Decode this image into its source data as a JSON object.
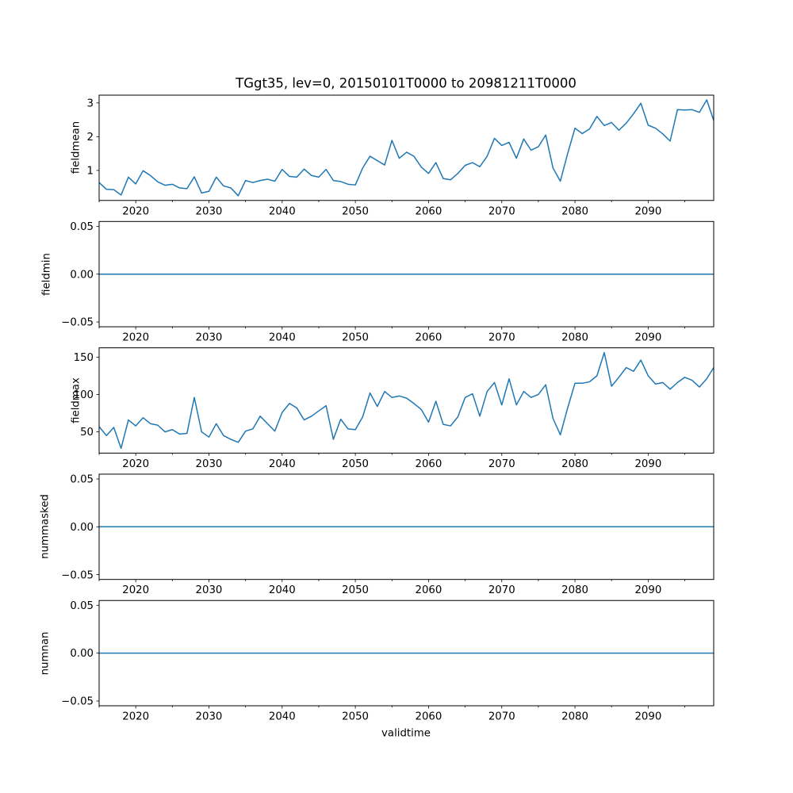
{
  "figure": {
    "title": "TGgt35, lev=0, 20150101T0000 to 20981211T0000",
    "xlabel": "validtime",
    "background": "#ffffff",
    "line_color": "#1f77b4",
    "axis_color": "#000000",
    "xlim": [
      2015.0,
      2098.95
    ],
    "x_major_ticks": [
      2020,
      2030,
      2040,
      2050,
      2060,
      2070,
      2080,
      2090
    ],
    "x_tick_labels": [
      "2020",
      "2030",
      "2040",
      "2050",
      "2060",
      "2070",
      "2080",
      "2090"
    ],
    "x_minor_ticks": [
      2015,
      2025,
      2035,
      2045,
      2055,
      2065,
      2075,
      2085,
      2095
    ]
  },
  "chart_data": [
    {
      "type": "line",
      "ylabel": "fieldmean",
      "ylim": [
        0.11,
        3.23
      ],
      "yticks": [
        1,
        2,
        3
      ],
      "ytick_labels": [
        "1",
        "2",
        "3"
      ],
      "x": [
        2015,
        2016,
        2017,
        2018,
        2019,
        2020,
        2021,
        2022,
        2023,
        2024,
        2025,
        2026,
        2027,
        2028,
        2029,
        2030,
        2031,
        2032,
        2033,
        2034,
        2035,
        2036,
        2037,
        2038,
        2039,
        2040,
        2041,
        2042,
        2043,
        2044,
        2045,
        2046,
        2047,
        2048,
        2049,
        2050,
        2051,
        2052,
        2053,
        2054,
        2055,
        2056,
        2057,
        2058,
        2059,
        2060,
        2061,
        2062,
        2063,
        2064,
        2065,
        2066,
        2067,
        2068,
        2069,
        2070,
        2071,
        2072,
        2073,
        2074,
        2075,
        2076,
        2077,
        2078,
        2079,
        2080,
        2081,
        2082,
        2083,
        2084,
        2085,
        2086,
        2087,
        2088,
        2089,
        2090,
        2091,
        2092,
        2093,
        2094,
        2095,
        2096,
        2097,
        2098,
        2098.95
      ],
      "values": [
        0.64,
        0.44,
        0.43,
        0.27,
        0.8,
        0.6,
        0.99,
        0.85,
        0.66,
        0.56,
        0.59,
        0.48,
        0.46,
        0.81,
        0.33,
        0.38,
        0.8,
        0.54,
        0.48,
        0.25,
        0.7,
        0.64,
        0.7,
        0.74,
        0.68,
        1.03,
        0.82,
        0.8,
        1.04,
        0.85,
        0.8,
        1.03,
        0.7,
        0.67,
        0.59,
        0.57,
        1.07,
        1.42,
        1.29,
        1.16,
        1.89,
        1.36,
        1.54,
        1.42,
        1.1,
        0.91,
        1.23,
        0.76,
        0.72,
        0.91,
        1.15,
        1.23,
        1.11,
        1.42,
        1.95,
        1.74,
        1.83,
        1.36,
        1.93,
        1.6,
        1.7,
        2.05,
        1.07,
        0.68,
        1.5,
        2.25,
        2.09,
        2.23,
        2.6,
        2.33,
        2.42,
        2.19,
        2.4,
        2.68,
        2.99,
        2.34,
        2.25,
        2.08,
        1.87,
        2.8,
        2.79,
        2.8,
        2.72,
        3.09,
        2.48
      ]
    },
    {
      "type": "line",
      "ylabel": "fieldmin",
      "ylim": [
        -0.055,
        0.055
      ],
      "yticks": [
        0.05,
        0.0,
        -0.05
      ],
      "ytick_labels": [
        "0.05",
        "0.00",
        "−0.05"
      ],
      "x": [
        2015.0,
        2098.95
      ],
      "values": [
        0,
        0
      ]
    },
    {
      "type": "line",
      "ylabel": "fieldmax",
      "ylim": [
        21.6,
        162.4
      ],
      "yticks": [
        50,
        100,
        150
      ],
      "ytick_labels": [
        "50",
        "100",
        "150"
      ],
      "x": [
        2015,
        2016,
        2017,
        2018,
        2019,
        2020,
        2021,
        2022,
        2023,
        2024,
        2025,
        2026,
        2027,
        2028,
        2029,
        2030,
        2031,
        2032,
        2033,
        2034,
        2035,
        2036,
        2037,
        2038,
        2039,
        2040,
        2041,
        2042,
        2043,
        2044,
        2045,
        2046,
        2047,
        2048,
        2049,
        2050,
        2051,
        2052,
        2053,
        2054,
        2055,
        2056,
        2057,
        2058,
        2059,
        2060,
        2061,
        2062,
        2063,
        2064,
        2065,
        2066,
        2067,
        2068,
        2069,
        2070,
        2071,
        2072,
        2073,
        2074,
        2075,
        2076,
        2077,
        2078,
        2079,
        2080,
        2081,
        2082,
        2083,
        2084,
        2085,
        2086,
        2087,
        2088,
        2089,
        2090,
        2091,
        2092,
        2093,
        2094,
        2095,
        2096,
        2097,
        2098,
        2098.95
      ],
      "values": [
        57,
        45,
        56,
        28,
        66,
        58,
        69,
        61,
        59,
        50,
        53,
        47,
        48,
        96,
        50,
        43,
        61,
        45,
        40,
        36,
        51,
        54,
        71,
        61,
        51,
        76,
        88,
        82,
        66,
        71,
        78,
        85,
        40,
        67,
        54,
        53,
        70,
        102,
        84,
        104,
        96,
        98,
        95,
        88,
        80,
        63,
        91,
        60,
        58,
        70,
        96,
        101,
        71,
        104,
        116,
        86,
        121,
        86,
        104,
        96,
        100,
        113,
        68,
        46,
        82,
        115,
        115,
        117,
        125,
        156,
        111,
        123,
        136,
        131,
        146,
        125,
        114,
        116,
        107,
        116,
        123,
        119,
        110,
        121,
        136
      ]
    },
    {
      "type": "line",
      "ylabel": "nummasked",
      "ylim": [
        -0.055,
        0.055
      ],
      "yticks": [
        0.05,
        0.0,
        -0.05
      ],
      "ytick_labels": [
        "0.05",
        "0.00",
        "−0.05"
      ],
      "x": [
        2015.0,
        2098.95
      ],
      "values": [
        0,
        0
      ]
    },
    {
      "type": "line",
      "ylabel": "numnan",
      "ylim": [
        -0.055,
        0.055
      ],
      "yticks": [
        0.05,
        0.0,
        -0.05
      ],
      "ytick_labels": [
        "0.05",
        "0.00",
        "−0.05"
      ],
      "x": [
        2015.0,
        2098.95
      ],
      "values": [
        0,
        0
      ]
    }
  ]
}
